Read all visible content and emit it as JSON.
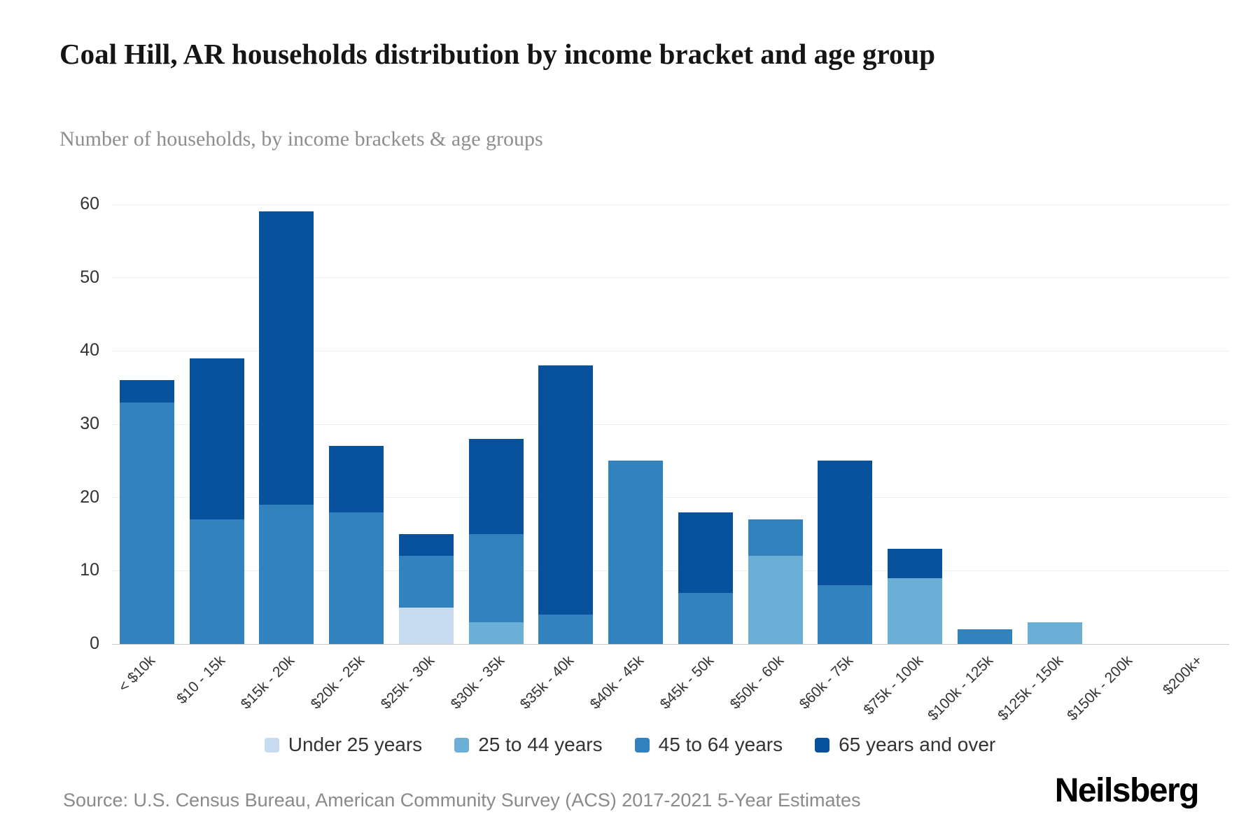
{
  "header": {
    "title": "Coal Hill, AR households distribution by income bracket and age group",
    "subtitle": "Number of households, by income brackets & age groups"
  },
  "footer": {
    "source": "Source: U.S. Census Bureau, American Community Survey (ACS) 2017-2021 5-Year Estimates",
    "brand": "Neilsberg"
  },
  "chart_data": {
    "type": "bar",
    "stacked": true,
    "title": "Coal Hill, AR households distribution by income bracket and age group",
    "subtitle": "Number of households, by income brackets & age groups",
    "xlabel": "",
    "ylabel": "",
    "ylim": [
      0,
      60
    ],
    "yticks": [
      0,
      10,
      20,
      30,
      40,
      50,
      60
    ],
    "grid": true,
    "legend_position": "bottom",
    "categories": [
      "< $10k",
      "$10 - 15k",
      "$15k - 20k",
      "$20k - 25k",
      "$25k - 30k",
      "$30k - 35k",
      "$35k - 40k",
      "$40k - 45k",
      "$45k - 50k",
      "$50k - 60k",
      "$60k - 75k",
      "$75k - 100k",
      "$100k - 125k",
      "$125k - 150k",
      "$150k - 200k",
      "$200k+"
    ],
    "series": [
      {
        "name": "Under 25 years",
        "color": "#c6dbef",
        "values": [
          0,
          0,
          0,
          0,
          5,
          0,
          0,
          0,
          0,
          0,
          0,
          0,
          0,
          0,
          0,
          0
        ]
      },
      {
        "name": "25 to 44 years",
        "color": "#6baed6",
        "values": [
          0,
          0,
          0,
          0,
          0,
          3,
          0,
          0,
          0,
          12,
          0,
          9,
          0,
          3,
          0,
          0
        ]
      },
      {
        "name": "45 to 64 years",
        "color": "#3182bd",
        "values": [
          33,
          17,
          19,
          18,
          7,
          12,
          4,
          25,
          7,
          5,
          8,
          0,
          2,
          0,
          0,
          0
        ]
      },
      {
        "name": "65 years and over",
        "color": "#08519c",
        "values": [
          3,
          22,
          40,
          9,
          3,
          13,
          34,
          0,
          11,
          0,
          17,
          4,
          0,
          0,
          0,
          0
        ]
      }
    ],
    "totals": [
      36,
      39,
      59,
      27,
      15,
      28,
      38,
      25,
      18,
      17,
      25,
      13,
      2,
      3,
      0,
      0
    ]
  }
}
